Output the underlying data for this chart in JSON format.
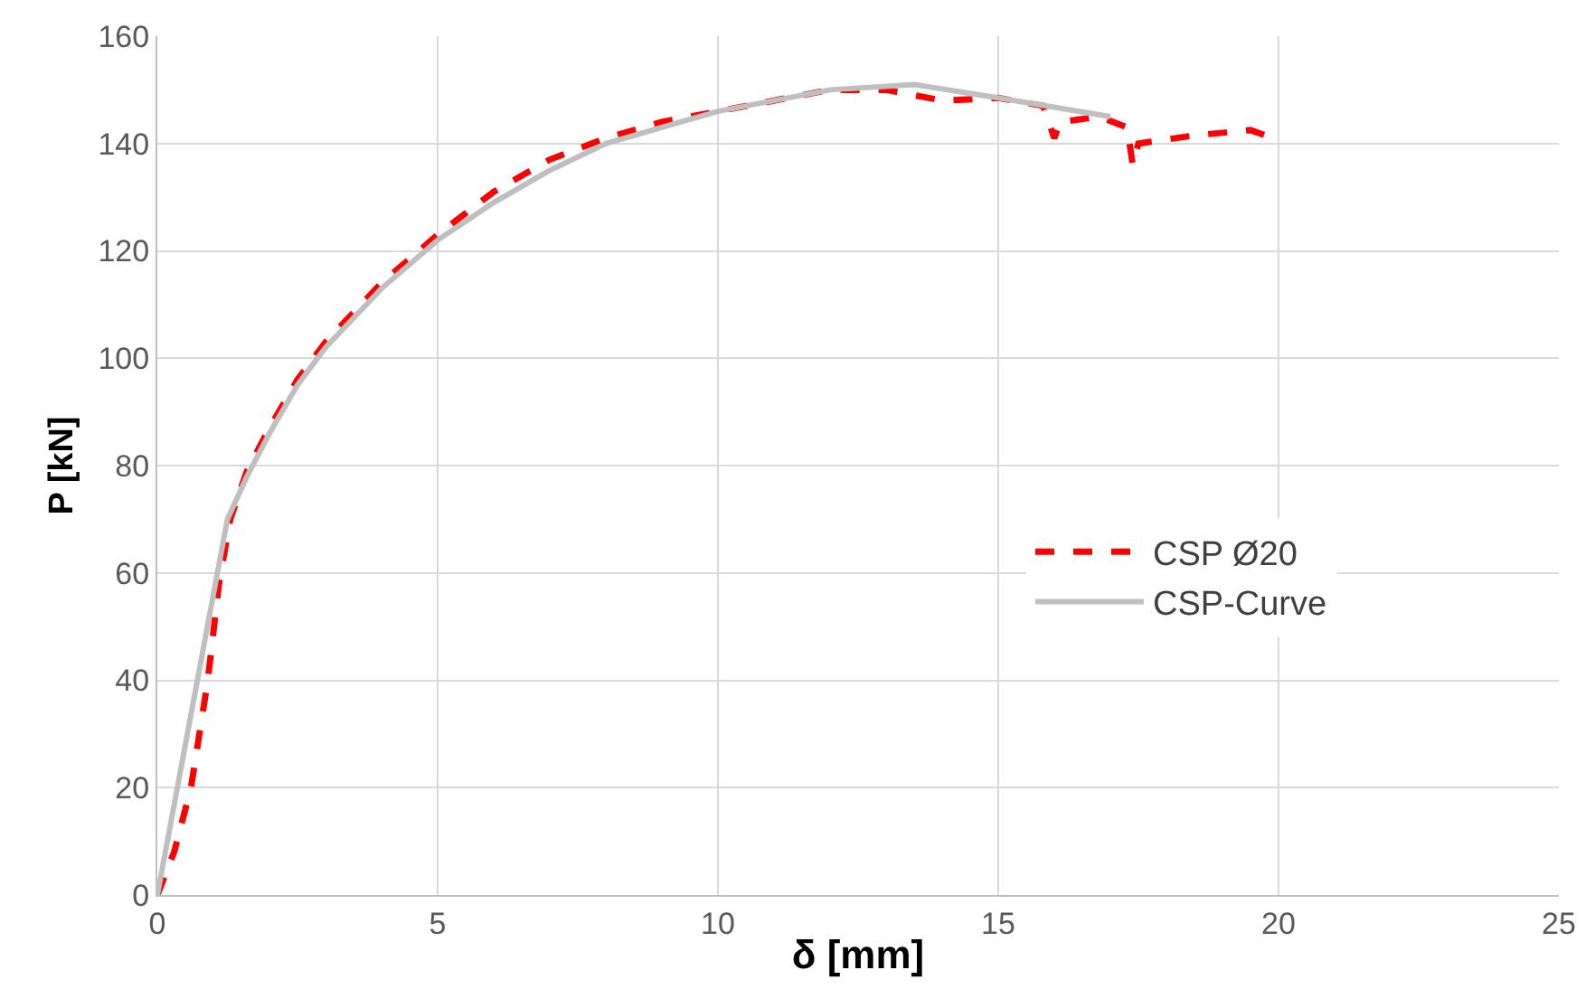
{
  "chart_data": {
    "type": "line",
    "xlabel": "δ [mm]",
    "ylabel": "P [kN]",
    "xlim": [
      0,
      25
    ],
    "xticks": [
      0,
      5,
      10,
      15,
      20,
      25
    ],
    "ylim": [
      0,
      160
    ],
    "yticks": [
      0,
      20,
      40,
      60,
      80,
      100,
      120,
      140,
      160
    ],
    "grid": true,
    "legend": "right",
    "marker": "none",
    "series": [
      {
        "name": "CSP Ø20",
        "color": "#ff0000",
        "line_style": "dashed",
        "x": [
          0,
          0.3,
          0.6,
          0.9,
          1.1,
          1.3,
          1.6,
          2,
          2.5,
          3,
          4,
          5,
          6,
          7,
          8,
          9,
          10,
          11,
          12,
          13,
          14,
          15,
          15.8,
          16,
          16.1,
          16.8,
          17.3,
          17.4,
          17.5,
          18.5,
          19.5,
          19.9
        ],
        "values": [
          0,
          8,
          20,
          40,
          58,
          70,
          79,
          87,
          96,
          103,
          114,
          123,
          131,
          137,
          141,
          144,
          146,
          148,
          150,
          150,
          148,
          148.5,
          147,
          141,
          144,
          145,
          143,
          136,
          140,
          141.5,
          142.5,
          141
        ]
      },
      {
        "name": "CSP-Curve",
        "color": "#bfbfbf",
        "line_style": "solid",
        "x": [
          0,
          1.25,
          1.6,
          2,
          2.5,
          3,
          4,
          5,
          6,
          7,
          8,
          10,
          12,
          13.5,
          15,
          17
        ],
        "values": [
          0,
          70,
          78,
          86,
          95,
          102,
          113,
          122,
          129,
          135,
          140,
          146,
          150,
          151,
          148.5,
          145
        ]
      }
    ]
  }
}
